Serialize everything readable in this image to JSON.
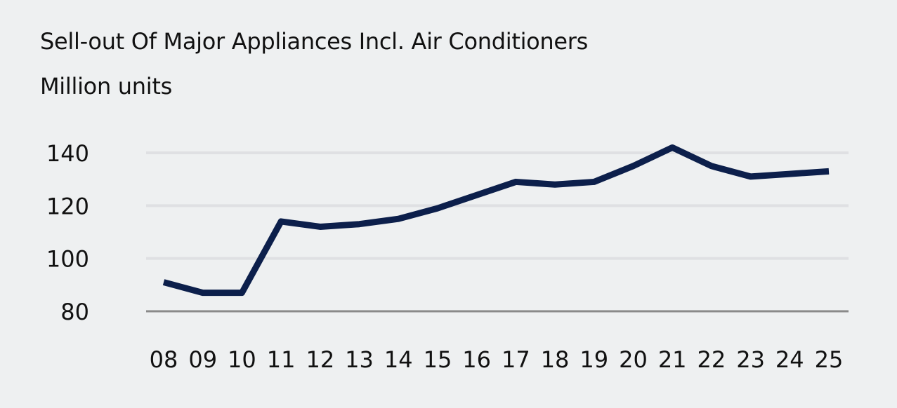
{
  "chart_data": {
    "type": "line",
    "title": "Sell-out Of Major Appliances Incl. Air Conditioners",
    "subtitle": "Million units",
    "xlabel": "",
    "ylabel": "Million units",
    "categories": [
      "08",
      "09",
      "10",
      "11",
      "12",
      "13",
      "14",
      "15",
      "16",
      "17",
      "18",
      "19",
      "20",
      "21",
      "22",
      "23",
      "24",
      "25"
    ],
    "series": [
      {
        "name": "Sell-out",
        "values": [
          91,
          87,
          87,
          114,
          112,
          113,
          115,
          119,
          124,
          129,
          128,
          129,
          135,
          142,
          135,
          131,
          132,
          133
        ],
        "color": "#0c1f4b"
      }
    ],
    "yticks": [
      80,
      100,
      120,
      140
    ],
    "ylim": [
      80,
      140
    ],
    "grid": true,
    "legend": "none"
  }
}
